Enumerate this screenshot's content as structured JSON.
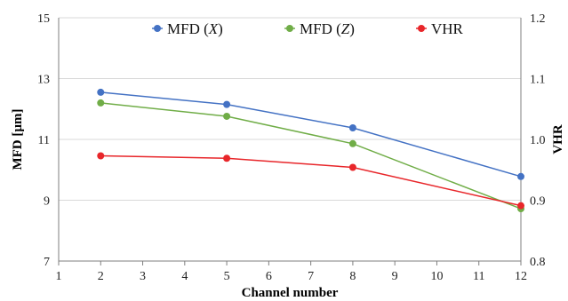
{
  "chart_data": {
    "type": "line",
    "x": [
      2,
      5,
      8,
      12
    ],
    "series": [
      {
        "name": "MFD (X)",
        "name_parts": [
          "MFD (",
          "X",
          ")"
        ],
        "axis": "left",
        "color": "#4472C4",
        "values": [
          12.55,
          12.15,
          11.38,
          9.78
        ]
      },
      {
        "name": "MFD (Z)",
        "name_parts": [
          "MFD (",
          "Z",
          ")"
        ],
        "axis": "left",
        "color": "#70AD47",
        "values": [
          12.2,
          11.76,
          10.86,
          8.72
        ]
      },
      {
        "name": "VHR",
        "name_parts": [
          "VHR",
          "",
          ""
        ],
        "axis": "right",
        "color": "#E8262A",
        "values": [
          0.973,
          0.969,
          0.954,
          0.891
        ]
      }
    ],
    "xlabel": "Channel number",
    "ylabel": "MFD [µm]",
    "y2label": "VHR",
    "xlim": [
      1,
      12
    ],
    "ylim": [
      7,
      15
    ],
    "y2lim": [
      0.8,
      1.2
    ],
    "xticks": [
      "1",
      "2",
      "3",
      "4",
      "5",
      "6",
      "7",
      "8",
      "9",
      "10",
      "11",
      "12"
    ],
    "yticks": [
      "7",
      "9",
      "11",
      "13",
      "15"
    ],
    "y2ticks": [
      "0.8",
      "0.9",
      "1.0",
      "1.1",
      "1.2"
    ],
    "grid": "horizontal",
    "legend_position": "top"
  }
}
